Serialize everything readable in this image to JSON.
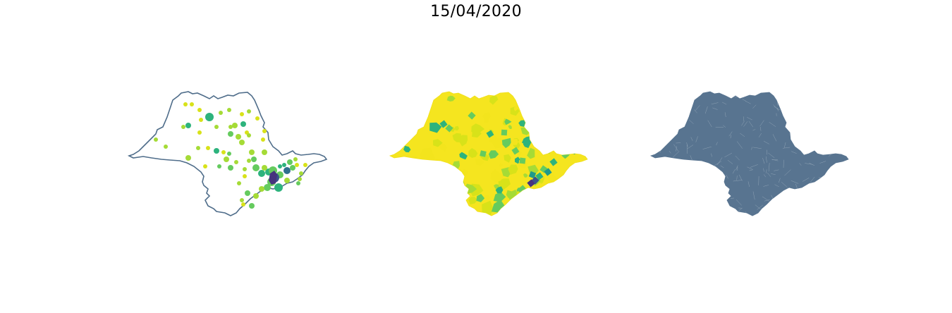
{
  "title": "15/04/2020",
  "panels": [
    {
      "id": "points",
      "kind": "proportional-symbol",
      "outline_color": "#4f6d8a"
    },
    {
      "id": "choropleth",
      "kind": "choropleth",
      "base_color": "#f5e51f"
    },
    {
      "id": "municipalities",
      "kind": "municipality-boundaries",
      "fill_color": "#587490",
      "border_color": "#8fa3b5"
    }
  ],
  "palette": {
    "very_low": "#f3e41d",
    "low": "#d8e219",
    "mid_low": "#a5db36",
    "mid": "#65cb5e",
    "mid_high": "#2db37d",
    "high": "#1f9a8a",
    "very_high": "#2e6f8e",
    "max": "#3b528b",
    "peak": "#46337e"
  }
}
